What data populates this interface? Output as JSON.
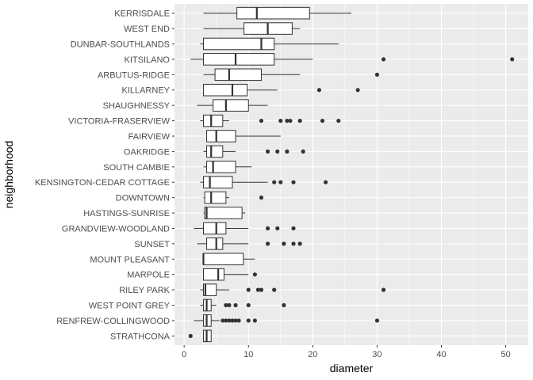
{
  "chart_data": {
    "type": "boxplot",
    "orientation": "horizontal",
    "xlabel": "diameter",
    "ylabel": "neighborhood",
    "xlim": [
      -1.5,
      53.5
    ],
    "x_ticks": [
      0,
      10,
      20,
      30,
      40,
      50
    ],
    "grid": true,
    "panel_background": "#EBEBEB",
    "grid_color": "#FFFFFF",
    "box_fill": "#FFFFFF",
    "line_color": "#333333",
    "outlier_color": "#333333",
    "categories": [
      {
        "name": "KERRISDALE",
        "whisker_low": 3,
        "q1": 8.2,
        "median": 11.3,
        "q3": 19.5,
        "whisker_high": 26,
        "outliers": []
      },
      {
        "name": "WEST END",
        "whisker_low": 3,
        "q1": 9.3,
        "median": 13,
        "q3": 16.8,
        "whisker_high": 18,
        "outliers": []
      },
      {
        "name": "DUNBAR-SOUTHLANDS",
        "whisker_low": 2.5,
        "q1": 3,
        "median": 12,
        "q3": 14,
        "whisker_high": 24,
        "outliers": []
      },
      {
        "name": "KITSILANO",
        "whisker_low": 1,
        "q1": 3,
        "median": 8,
        "q3": 14,
        "whisker_high": 20,
        "outliers": [
          31,
          51
        ]
      },
      {
        "name": "ARBUTUS-RIDGE",
        "whisker_low": 3,
        "q1": 4.8,
        "median": 7,
        "q3": 12,
        "whisker_high": 18,
        "outliers": [
          30
        ]
      },
      {
        "name": "KILLARNEY",
        "whisker_low": 3,
        "q1": 3,
        "median": 7.5,
        "q3": 9.8,
        "whisker_high": 14.5,
        "outliers": [
          21,
          27
        ]
      },
      {
        "name": "SHAUGHNESSY",
        "whisker_low": 2,
        "q1": 4.5,
        "median": 6.5,
        "q3": 10,
        "whisker_high": 13,
        "outliers": []
      },
      {
        "name": "VICTORIA-FRASERVIEW",
        "whisker_low": 2.5,
        "q1": 3,
        "median": 4.2,
        "q3": 6,
        "whisker_high": 7,
        "outliers": [
          12,
          15,
          16,
          16.5,
          18,
          21.5,
          24
        ]
      },
      {
        "name": "FAIRVIEW",
        "whisker_low": 3.5,
        "q1": 3.5,
        "median": 5,
        "q3": 8,
        "whisker_high": 15,
        "outliers": []
      },
      {
        "name": "OAKRIDGE",
        "whisker_low": 3,
        "q1": 3.5,
        "median": 4.2,
        "q3": 6,
        "whisker_high": 8,
        "outliers": [
          13,
          14.5,
          16,
          18.5
        ]
      },
      {
        "name": "SOUTH CAMBIE",
        "whisker_low": 3,
        "q1": 3.5,
        "median": 4.5,
        "q3": 8,
        "whisker_high": 10.5,
        "outliers": []
      },
      {
        "name": "KENSINGTON-CEDAR COTTAGE",
        "whisker_low": 2.5,
        "q1": 3,
        "median": 4,
        "q3": 7.5,
        "whisker_high": 13,
        "outliers": [
          14,
          15,
          17,
          22
        ]
      },
      {
        "name": "DOWNTOWN",
        "whisker_low": 3,
        "q1": 3.2,
        "median": 4.2,
        "q3": 6.5,
        "whisker_high": 7,
        "outliers": [
          12
        ]
      },
      {
        "name": "HASTINGS-SUNRISE",
        "whisker_low": 3,
        "q1": 3.2,
        "median": 3.5,
        "q3": 9,
        "whisker_high": 9.5,
        "outliers": []
      },
      {
        "name": "GRANDVIEW-WOODLAND",
        "whisker_low": 1.5,
        "q1": 3,
        "median": 5,
        "q3": 6.5,
        "whisker_high": 10,
        "outliers": [
          13,
          14.5,
          17
        ]
      },
      {
        "name": "SUNSET",
        "whisker_low": 2,
        "q1": 3.5,
        "median": 5,
        "q3": 6,
        "whisker_high": 10,
        "outliers": [
          13,
          15.5,
          17,
          18
        ]
      },
      {
        "name": "MOUNT PLEASANT",
        "whisker_low": 3,
        "q1": 3,
        "median": 3,
        "q3": 9.2,
        "whisker_high": 11,
        "outliers": []
      },
      {
        "name": "MARPOLE",
        "whisker_low": 3,
        "q1": 3,
        "median": 5.3,
        "q3": 6.2,
        "whisker_high": 10,
        "outliers": [
          11
        ]
      },
      {
        "name": "RILEY PARK",
        "whisker_low": 2.5,
        "q1": 3,
        "median": 3.3,
        "q3": 5,
        "whisker_high": 7,
        "outliers": [
          10,
          11.5,
          12,
          14,
          31
        ]
      },
      {
        "name": "WEST POINT GREY",
        "whisker_low": 2.5,
        "q1": 3,
        "median": 3.5,
        "q3": 4.2,
        "whisker_high": 5,
        "outliers": [
          6.5,
          7,
          8,
          10,
          15.5
        ]
      },
      {
        "name": "RENFREW-COLLINGWOOD",
        "whisker_low": 1.5,
        "q1": 3,
        "median": 3.5,
        "q3": 4.2,
        "whisker_high": 5.5,
        "outliers": [
          6,
          6.5,
          7,
          7.5,
          8,
          8.5,
          10,
          11,
          30
        ]
      },
      {
        "name": "STRATHCONA",
        "whisker_low": 3,
        "q1": 3,
        "median": 3.5,
        "q3": 4.2,
        "whisker_high": 4.2,
        "outliers": [
          1
        ]
      }
    ]
  }
}
